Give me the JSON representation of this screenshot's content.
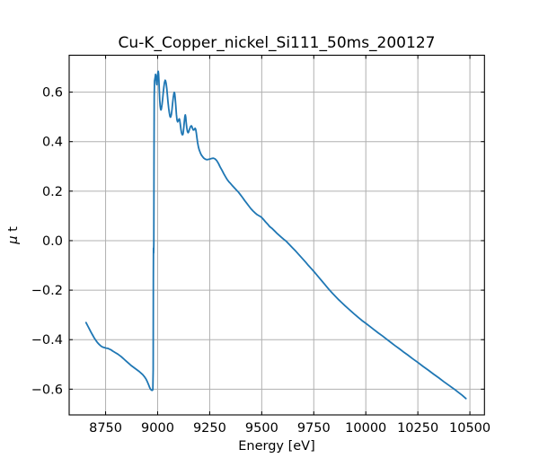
{
  "window": {
    "background": "#ffffff"
  },
  "chart_data": {
    "type": "line",
    "title": "Cu-K_Copper_nickel_Si111_50ms_200127",
    "xlabel": "Energy [eV]",
    "ylabel": "μ t",
    "ylabel_parts": [
      {
        "text": "μ",
        "italic": true
      },
      {
        "text": " t",
        "italic": false
      }
    ],
    "xlim": [
      8575,
      10570
    ],
    "ylim": [
      -0.704,
      0.749
    ],
    "x_ticks": {
      "values": [
        8750,
        9000,
        9250,
        9500,
        9750,
        10000,
        10250,
        10500
      ],
      "labels": [
        "8750",
        "9000",
        "9250",
        "9500",
        "9750",
        "10000",
        "10250",
        "10500"
      ]
    },
    "y_ticks": {
      "values": [
        0.6,
        0.4,
        0.2,
        0.0,
        -0.2,
        -0.4,
        -0.6
      ],
      "labels": [
        "0.6",
        "0.4",
        "0.2",
        "0.0",
        "−0.2",
        "−0.4",
        "−0.6"
      ]
    },
    "grid": true,
    "tick_direction": "in",
    "ticks_all_sides": true,
    "legend": "none",
    "line_color": "#1f77b4",
    "grid_color": "#b0b0b0",
    "axis_color": "#000000",
    "series": [
      {
        "name": "mu_t",
        "points": [
          [
            8656,
            -0.331
          ],
          [
            8664,
            -0.344
          ],
          [
            8672,
            -0.357
          ],
          [
            8680,
            -0.37
          ],
          [
            8688,
            -0.382
          ],
          [
            8696,
            -0.394
          ],
          [
            8704,
            -0.404
          ],
          [
            8712,
            -0.413
          ],
          [
            8720,
            -0.42
          ],
          [
            8728,
            -0.426
          ],
          [
            8736,
            -0.43
          ],
          [
            8744,
            -0.432
          ],
          [
            8752,
            -0.434
          ],
          [
            8760,
            -0.435
          ],
          [
            8768,
            -0.438
          ],
          [
            8776,
            -0.441
          ],
          [
            8784,
            -0.446
          ],
          [
            8792,
            -0.45
          ],
          [
            8800,
            -0.454
          ],
          [
            8808,
            -0.458
          ],
          [
            8816,
            -0.463
          ],
          [
            8824,
            -0.468
          ],
          [
            8832,
            -0.474
          ],
          [
            8840,
            -0.48
          ],
          [
            8848,
            -0.486
          ],
          [
            8856,
            -0.492
          ],
          [
            8864,
            -0.498
          ],
          [
            8872,
            -0.504
          ],
          [
            8880,
            -0.509
          ],
          [
            8888,
            -0.514
          ],
          [
            8896,
            -0.519
          ],
          [
            8904,
            -0.524
          ],
          [
            8912,
            -0.529
          ],
          [
            8920,
            -0.535
          ],
          [
            8928,
            -0.541
          ],
          [
            8936,
            -0.549
          ],
          [
            8944,
            -0.559
          ],
          [
            8950,
            -0.569
          ],
          [
            8956,
            -0.581
          ],
          [
            8961,
            -0.592
          ],
          [
            8965,
            -0.599
          ],
          [
            8969,
            -0.603
          ],
          [
            8973,
            -0.605
          ],
          [
            8977,
            -0.602
          ],
          [
            8978.6,
            -0.52
          ],
          [
            8979.4,
            -0.15
          ],
          [
            8980,
            -0.03
          ],
          [
            8980.8,
            -0.05
          ],
          [
            8981.6,
            -0.01
          ],
          [
            8982.6,
            0.34
          ],
          [
            8983.6,
            0.58
          ],
          [
            8985,
            0.645
          ],
          [
            8986.5,
            0.652
          ],
          [
            8988,
            0.659
          ],
          [
            8990,
            0.672
          ],
          [
            8991.5,
            0.668
          ],
          [
            8993,
            0.652
          ],
          [
            8995,
            0.634
          ],
          [
            8996.5,
            0.63
          ],
          [
            8998,
            0.645
          ],
          [
            9000,
            0.668
          ],
          [
            9001.5,
            0.681
          ],
          [
            9003,
            0.684
          ],
          [
            9004.5,
            0.673
          ],
          [
            9006,
            0.648
          ],
          [
            9008,
            0.606
          ],
          [
            9010,
            0.568
          ],
          [
            9012,
            0.545
          ],
          [
            9014,
            0.533
          ],
          [
            9016,
            0.528
          ],
          [
            9018,
            0.533
          ],
          [
            9021,
            0.549
          ],
          [
            9024,
            0.572
          ],
          [
            9027,
            0.598
          ],
          [
            9030,
            0.621
          ],
          [
            9033,
            0.639
          ],
          [
            9036,
            0.648
          ],
          [
            9038,
            0.646
          ],
          [
            9041,
            0.634
          ],
          [
            9044,
            0.614
          ],
          [
            9047,
            0.586
          ],
          [
            9050,
            0.558
          ],
          [
            9053,
            0.535
          ],
          [
            9056,
            0.517
          ],
          [
            9059,
            0.503
          ],
          [
            9061,
            0.499
          ],
          [
            9063,
            0.5
          ],
          [
            9066,
            0.51
          ],
          [
            9069,
            0.53
          ],
          [
            9072,
            0.556
          ],
          [
            9075,
            0.578
          ],
          [
            9078,
            0.594
          ],
          [
            9080,
            0.599
          ],
          [
            9082,
            0.594
          ],
          [
            9084,
            0.578
          ],
          [
            9087,
            0.547
          ],
          [
            9090,
            0.511
          ],
          [
            9093,
            0.487
          ],
          [
            9096,
            0.48
          ],
          [
            9099,
            0.484
          ],
          [
            9102,
            0.49
          ],
          [
            9104,
            0.492
          ],
          [
            9106,
            0.487
          ],
          [
            9109,
            0.469
          ],
          [
            9112,
            0.449
          ],
          [
            9115,
            0.435
          ],
          [
            9118,
            0.428
          ],
          [
            9121,
            0.428
          ],
          [
            9123,
            0.436
          ],
          [
            9126,
            0.461
          ],
          [
            9129,
            0.488
          ],
          [
            9131,
            0.503
          ],
          [
            9133,
            0.508
          ],
          [
            9135,
            0.499
          ],
          [
            9137,
            0.479
          ],
          [
            9140,
            0.456
          ],
          [
            9143,
            0.441
          ],
          [
            9146,
            0.436
          ],
          [
            9149,
            0.439
          ],
          [
            9152,
            0.447
          ],
          [
            9156,
            0.457
          ],
          [
            9159,
            0.462
          ],
          [
            9162,
            0.464
          ],
          [
            9165,
            0.46
          ],
          [
            9168,
            0.452
          ],
          [
            9171,
            0.447
          ],
          [
            9174,
            0.447
          ],
          [
            9177,
            0.451
          ],
          [
            9180,
            0.454
          ],
          [
            9183,
            0.449
          ],
          [
            9186,
            0.434
          ],
          [
            9189,
            0.414
          ],
          [
            9192,
            0.396
          ],
          [
            9196,
            0.378
          ],
          [
            9200,
            0.366
          ],
          [
            9205,
            0.355
          ],
          [
            9210,
            0.346
          ],
          [
            9216,
            0.339
          ],
          [
            9222,
            0.333
          ],
          [
            9229,
            0.329
          ],
          [
            9236,
            0.327
          ],
          [
            9244,
            0.328
          ],
          [
            9252,
            0.33
          ],
          [
            9260,
            0.332
          ],
          [
            9268,
            0.333
          ],
          [
            9276,
            0.33
          ],
          [
            9284,
            0.323
          ],
          [
            9292,
            0.312
          ],
          [
            9300,
            0.298
          ],
          [
            9310,
            0.283
          ],
          [
            9318,
            0.27
          ],
          [
            9326,
            0.258
          ],
          [
            9334,
            0.247
          ],
          [
            9342,
            0.238
          ],
          [
            9350,
            0.231
          ],
          [
            9358,
            0.223
          ],
          [
            9368,
            0.214
          ],
          [
            9378,
            0.205
          ],
          [
            9388,
            0.196
          ],
          [
            9398,
            0.185
          ],
          [
            9408,
            0.174
          ],
          [
            9418,
            0.162
          ],
          [
            9428,
            0.151
          ],
          [
            9438,
            0.14
          ],
          [
            9448,
            0.129
          ],
          [
            9458,
            0.12
          ],
          [
            9468,
            0.112
          ],
          [
            9478,
            0.105
          ],
          [
            9488,
            0.1
          ],
          [
            9498,
            0.095
          ],
          [
            9508,
            0.086
          ],
          [
            9518,
            0.076
          ],
          [
            9528,
            0.067
          ],
          [
            9538,
            0.057
          ],
          [
            9550,
            0.049
          ],
          [
            9562,
            0.039
          ],
          [
            9575,
            0.028
          ],
          [
            9590,
            0.017
          ],
          [
            9605,
            0.006
          ],
          [
            9617,
            -0.002
          ],
          [
            9632,
            -0.015
          ],
          [
            9648,
            -0.029
          ],
          [
            9664,
            -0.043
          ],
          [
            9680,
            -0.058
          ],
          [
            9696,
            -0.073
          ],
          [
            9712,
            -0.088
          ],
          [
            9724,
            -0.1
          ],
          [
            9737,
            -0.112
          ],
          [
            9750,
            -0.124
          ],
          [
            9763,
            -0.137
          ],
          [
            9776,
            -0.15
          ],
          [
            9789,
            -0.163
          ],
          [
            9802,
            -0.176
          ],
          [
            9814,
            -0.188
          ],
          [
            9826,
            -0.2
          ],
          [
            9840,
            -0.213
          ],
          [
            9855,
            -0.226
          ],
          [
            9870,
            -0.239
          ],
          [
            9885,
            -0.251
          ],
          [
            9900,
            -0.263
          ],
          [
            9916,
            -0.275
          ],
          [
            9932,
            -0.287
          ],
          [
            9948,
            -0.299
          ],
          [
            9965,
            -0.311
          ],
          [
            9982,
            -0.323
          ],
          [
            10000,
            -0.334
          ],
          [
            10020,
            -0.347
          ],
          [
            10040,
            -0.36
          ],
          [
            10060,
            -0.373
          ],
          [
            10080,
            -0.385
          ],
          [
            10100,
            -0.398
          ],
          [
            10120,
            -0.411
          ],
          [
            10140,
            -0.424
          ],
          [
            10160,
            -0.436
          ],
          [
            10180,
            -0.449
          ],
          [
            10200,
            -0.461
          ],
          [
            10225,
            -0.477
          ],
          [
            10250,
            -0.492
          ],
          [
            10275,
            -0.508
          ],
          [
            10300,
            -0.523
          ],
          [
            10325,
            -0.539
          ],
          [
            10350,
            -0.554
          ],
          [
            10375,
            -0.57
          ],
          [
            10400,
            -0.585
          ],
          [
            10425,
            -0.6
          ],
          [
            10445,
            -0.613
          ],
          [
            10462,
            -0.624
          ],
          [
            10481,
            -0.638
          ]
        ]
      }
    ]
  }
}
